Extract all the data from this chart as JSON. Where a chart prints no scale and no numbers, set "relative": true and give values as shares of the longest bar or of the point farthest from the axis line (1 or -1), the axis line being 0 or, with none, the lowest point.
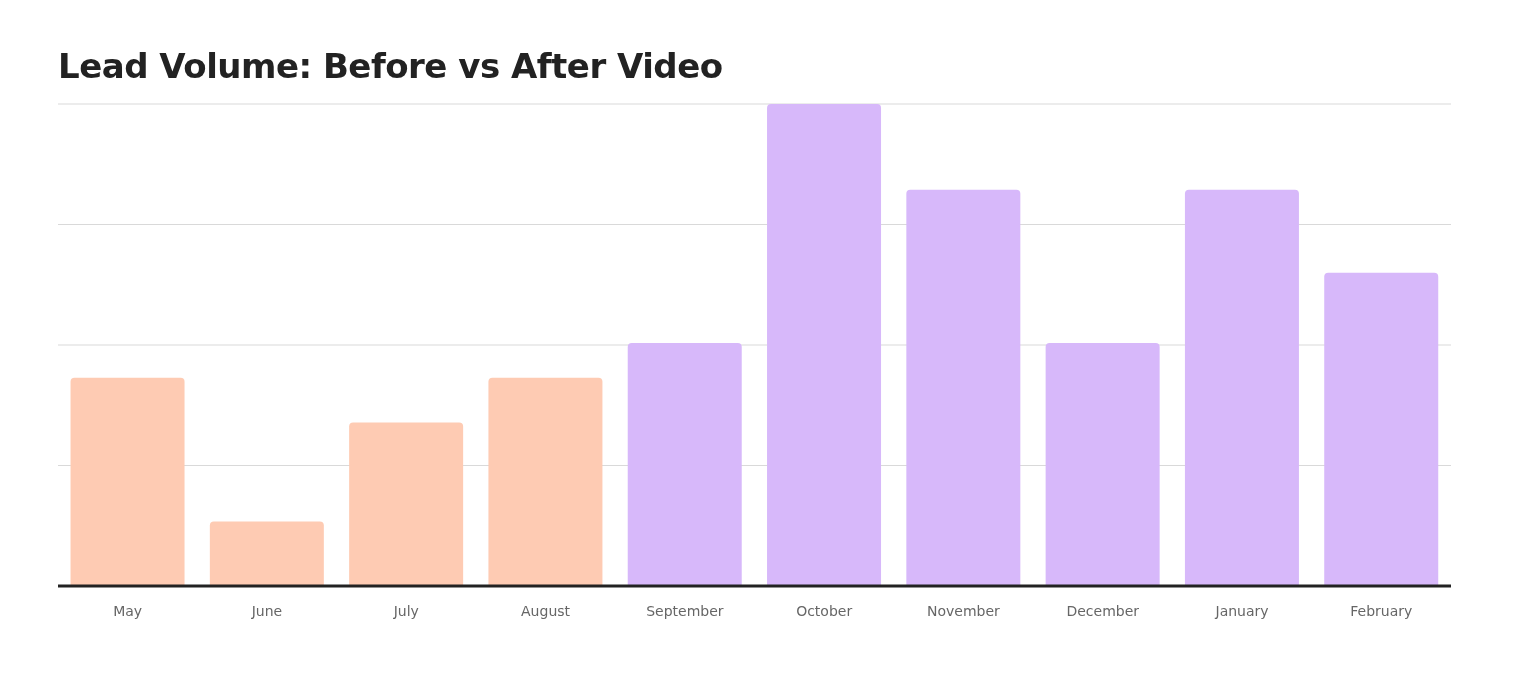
{
  "chart_data": {
    "type": "bar",
    "title": "Lead Volume: Before vs After Video",
    "categories": [
      "May",
      "June",
      "July",
      "August",
      "September",
      "October",
      "November",
      "December",
      "January",
      "February"
    ],
    "values": [
      0.432,
      0.134,
      0.339,
      0.432,
      0.504,
      1,
      0.822,
      0.504,
      0.822,
      0.65
    ],
    "colors": [
      "#fecbb3",
      "#fecbb3",
      "#fecbb3",
      "#fecbb3",
      "#d7b8fa",
      "#d7b8fa",
      "#d7b8fa",
      "#d7b8fa",
      "#d7b8fa",
      "#d7b8fa"
    ],
    "relative": true,
    "grid": "y"
  }
}
